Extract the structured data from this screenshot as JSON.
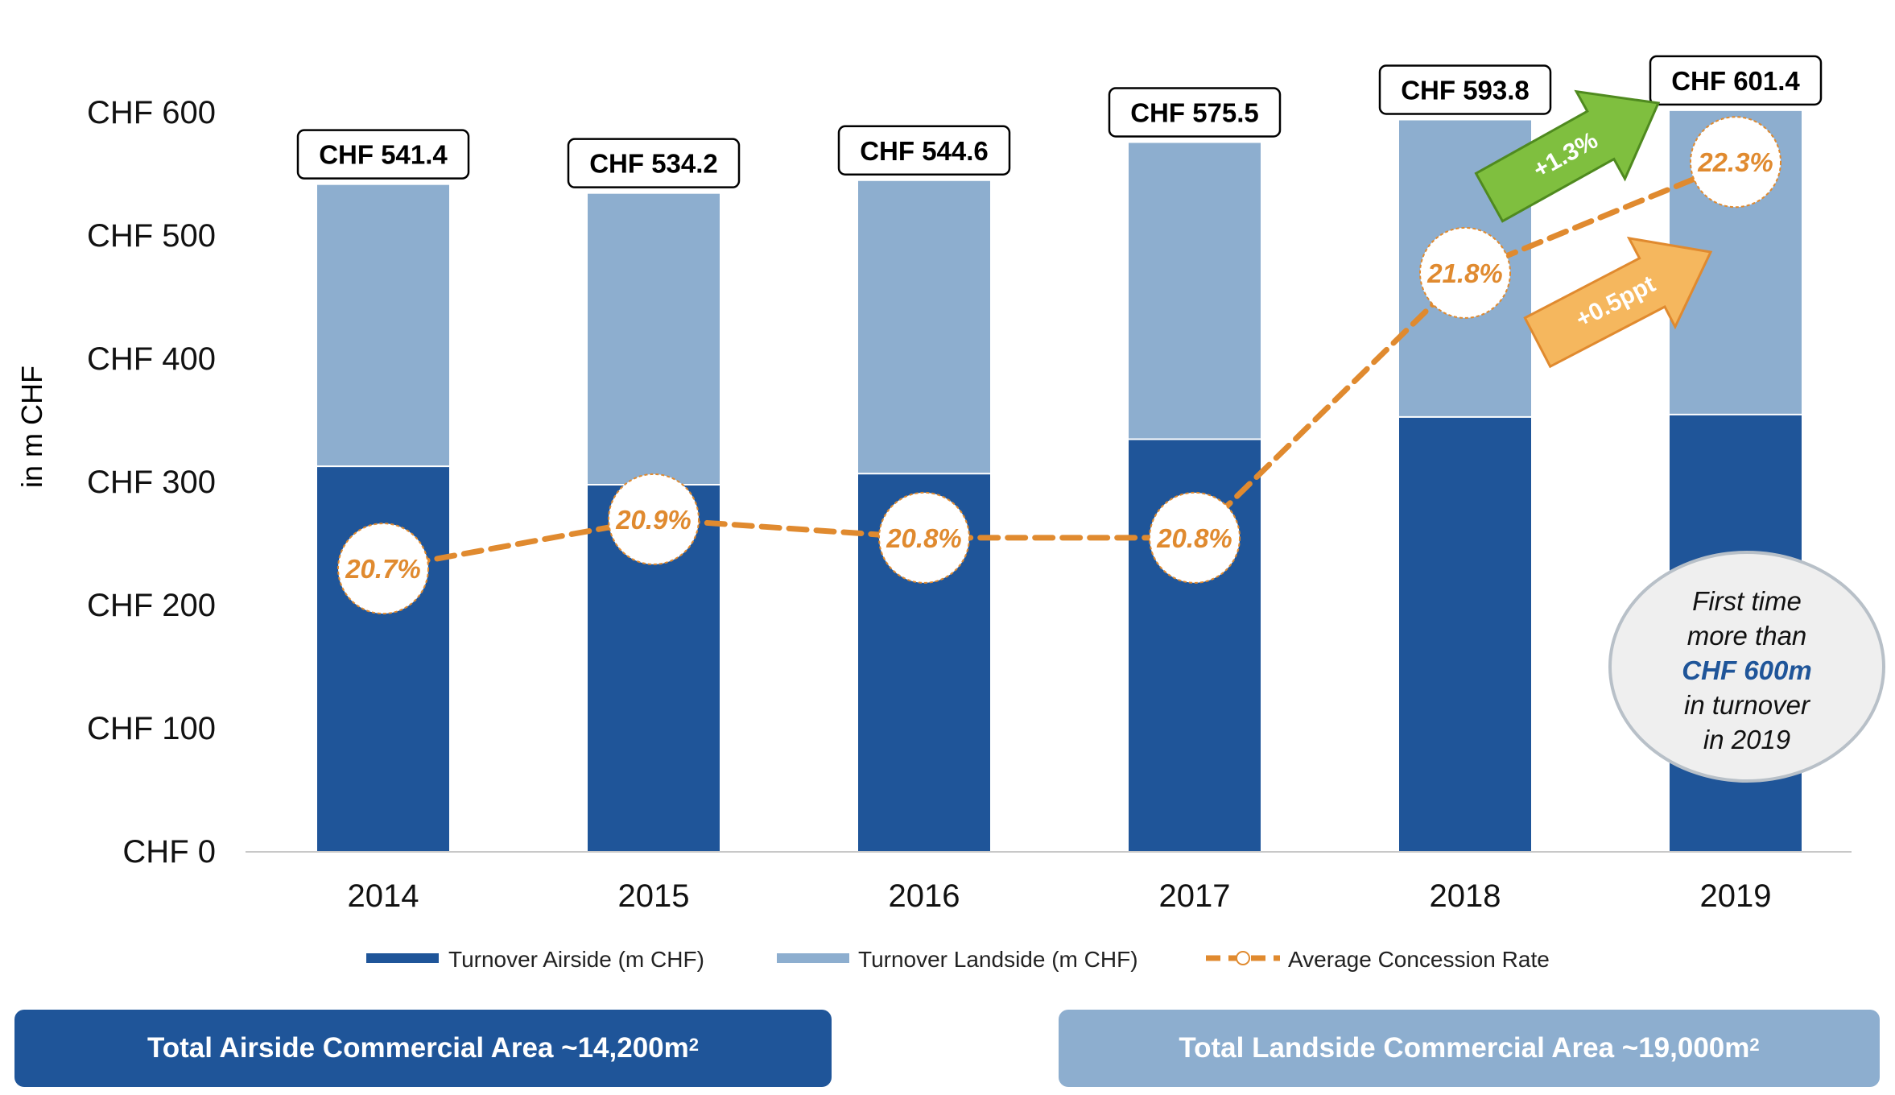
{
  "colors": {
    "airside": "#1f5599",
    "landside": "#8daecf",
    "rate": "#e08a2f",
    "rate_circle_border": "#e08a2f",
    "green_arrow": "#7fbf3f",
    "green_arrow_border": "#4f8a1f",
    "orange_arrow": "#f5b75e",
    "orange_arrow_border": "#e08a2f",
    "callout_bg": "#efefef",
    "callout_border": "#b8c0c8",
    "callout_highlight": "#1f5599",
    "axis_label": "#1f5599"
  },
  "chart_data": {
    "type": "bar",
    "stacked": true,
    "categories": [
      "2014",
      "2015",
      "2016",
      "2017",
      "2018",
      "2019"
    ],
    "ylabel": "in m CHF",
    "ylim": [
      0,
      600
    ],
    "yticks": [
      0,
      100,
      200,
      300,
      400,
      500,
      600
    ],
    "ytick_labels": [
      "CHF 0",
      "CHF 100",
      "CHF 200",
      "CHF 300",
      "CHF 400",
      "CHF 500",
      "CHF 600"
    ],
    "grid": false,
    "legend_position": "bottom",
    "series": [
      {
        "name": "Turnover Airside (m CHF)",
        "values": [
          313,
          298,
          307,
          335,
          353,
          355
        ]
      },
      {
        "name": "Turnover Landside (m CHF)",
        "values": [
          228.4,
          236.2,
          237.6,
          240.5,
          240.8,
          246.4
        ]
      }
    ],
    "totals": [
      541.4,
      534.2,
      544.6,
      575.5,
      593.8,
      601.4
    ],
    "total_labels": [
      "CHF 541.4",
      "CHF 534.2",
      "CHF 544.6",
      "CHF 575.5",
      "CHF 593.8",
      "CHF 601.4"
    ],
    "rate_series": {
      "name": "Average Concession Rate",
      "values": [
        20.7,
        20.9,
        20.8,
        20.8,
        21.8,
        22.3
      ],
      "labels": [
        "20.7%",
        "20.9%",
        "20.8%",
        "20.8%",
        "21.8%",
        "22.3%"
      ],
      "plot_positions": [
        230,
        270,
        255,
        255,
        470,
        560
      ]
    },
    "annotations": {
      "turnover_growth": "+1.3%",
      "rate_growth": "+0.5ppt",
      "callout_lines": [
        "First time",
        "more than",
        "CHF 600m",
        "in turnover",
        "in 2019"
      ]
    }
  },
  "footer": {
    "airside_area_label": "Total Airside Commercial Area ~14,200m",
    "airside_area_sup": "2",
    "landside_area_label": "Total Landside Commercial Area ~19,000m",
    "landside_area_sup": "2"
  }
}
